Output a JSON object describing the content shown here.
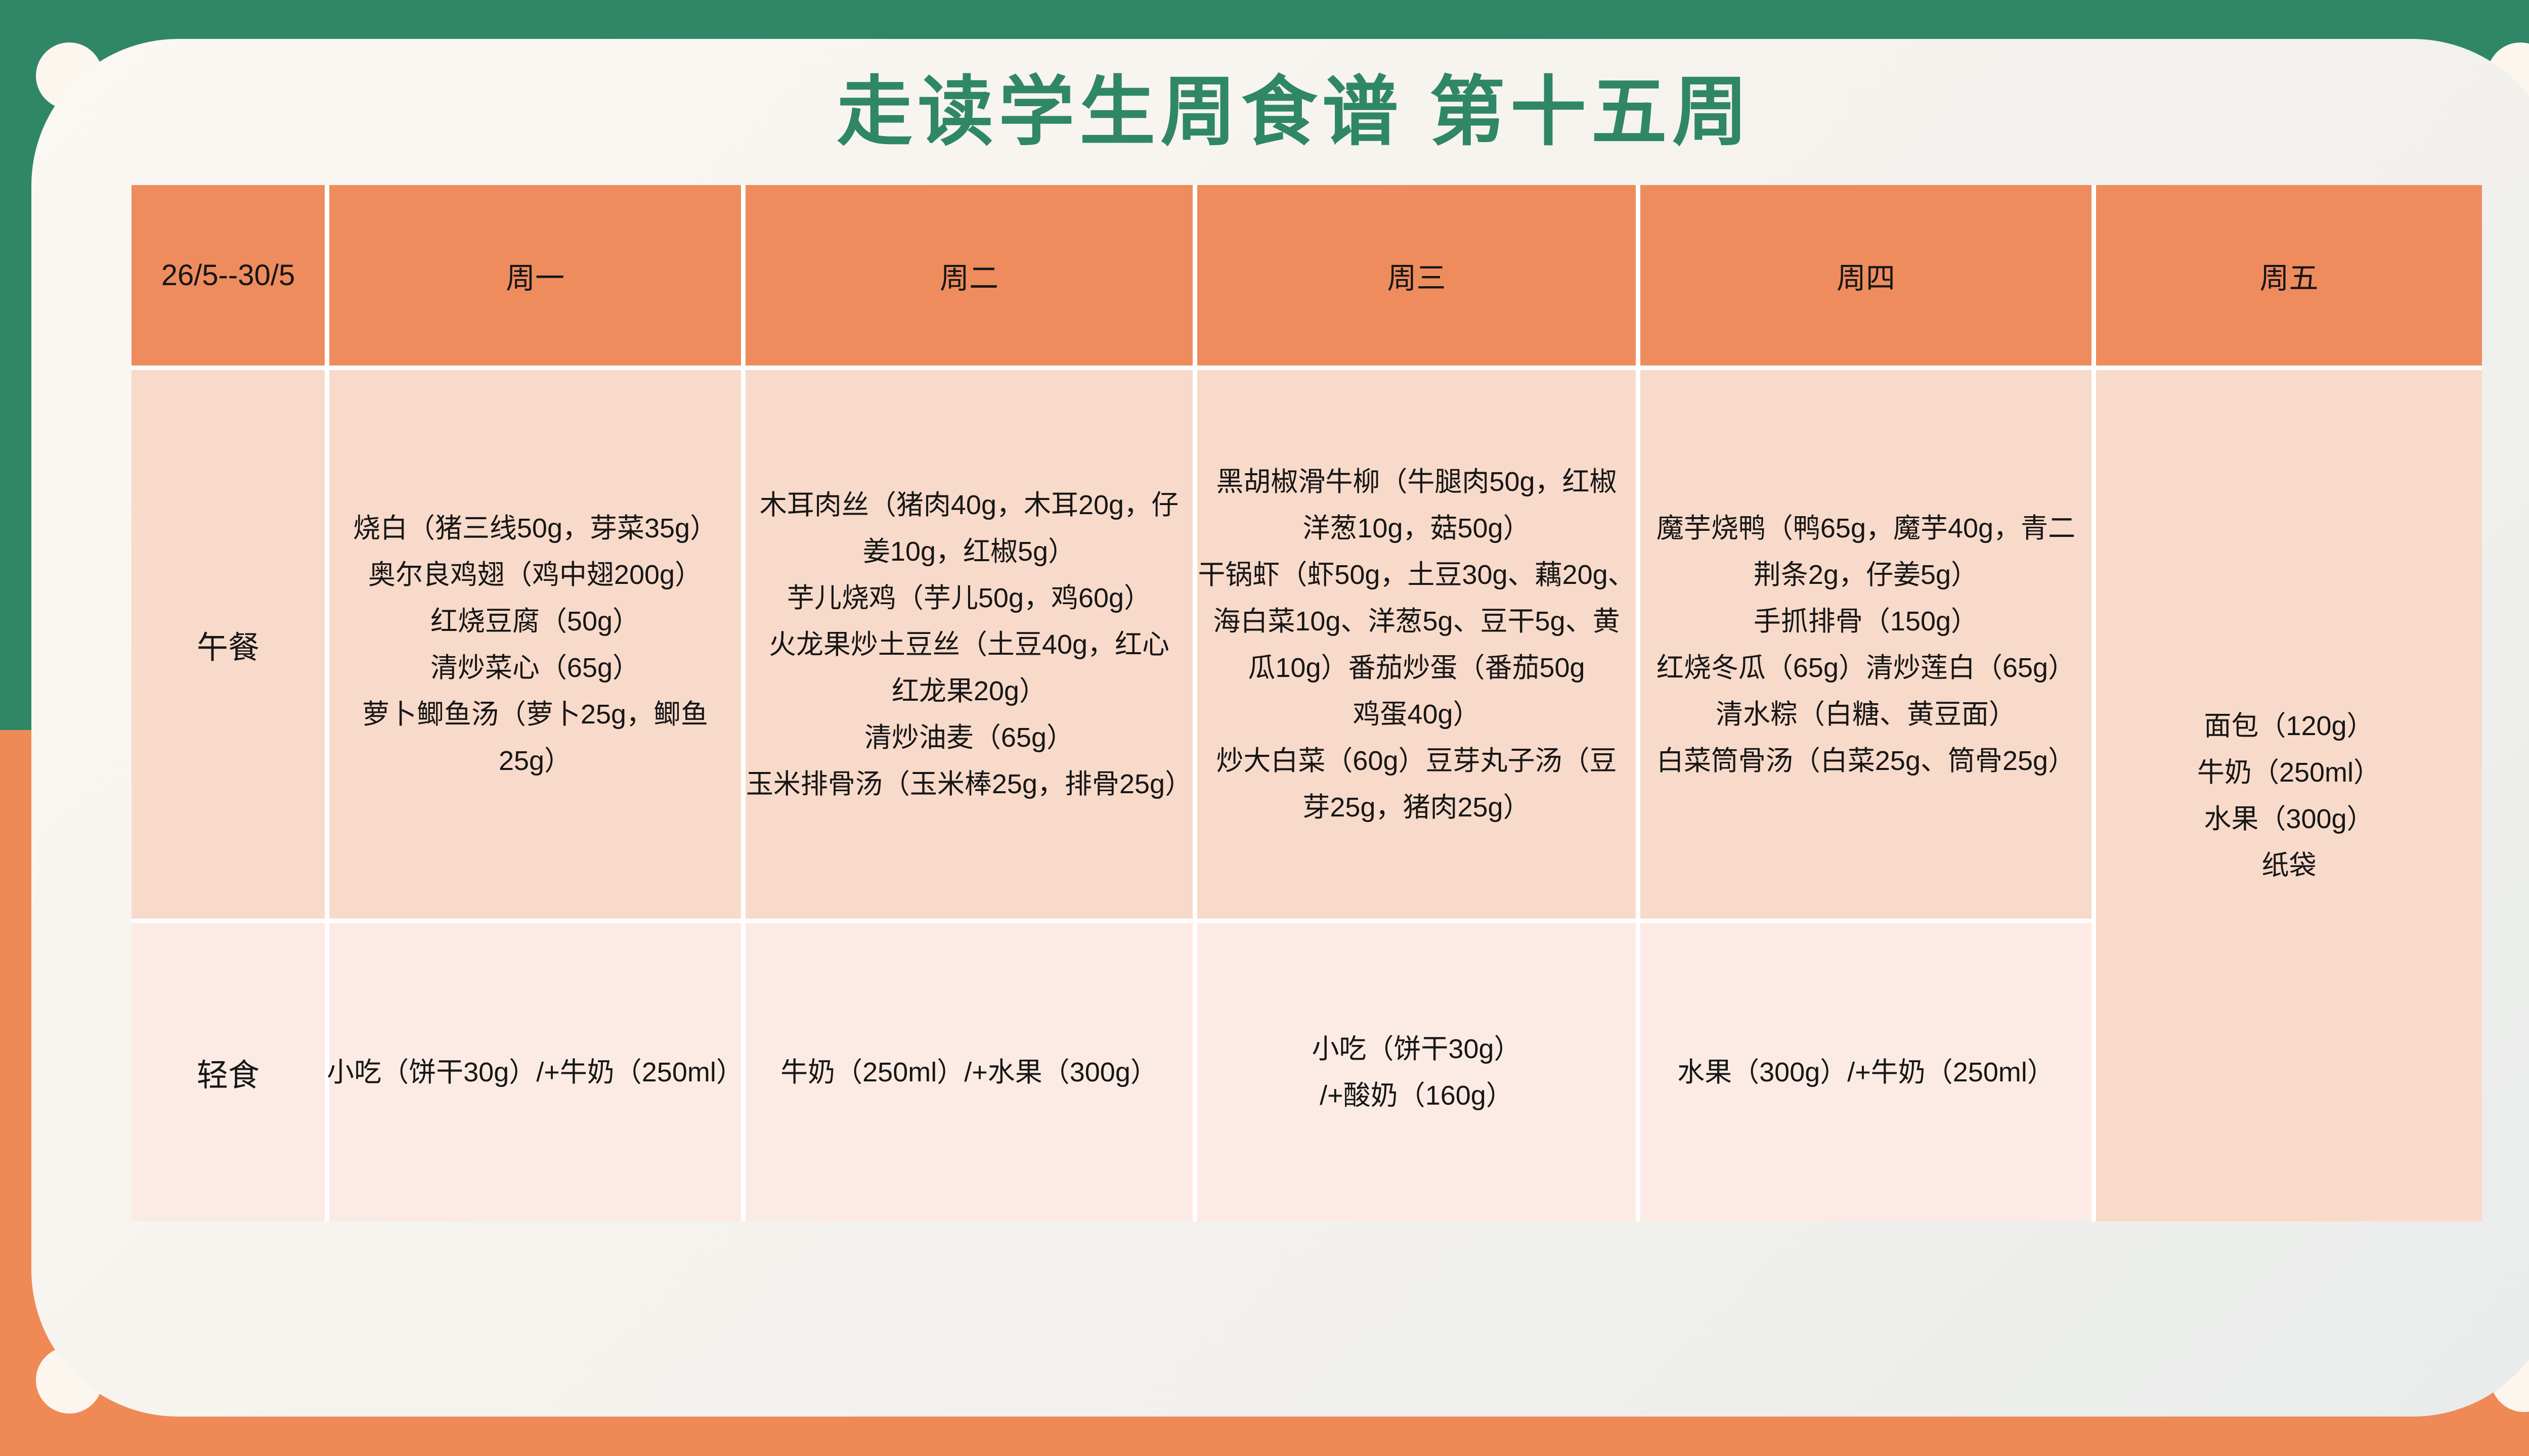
{
  "title": "走读学生周食谱 第十五周",
  "table": {
    "header": {
      "date_range": "26/5--30/5",
      "days": [
        "周一",
        "周二",
        "周三",
        "周四",
        "周五"
      ]
    },
    "lunch": {
      "label": "午餐",
      "monday": [
        "烧白（猪三线50g，芽菜35g）",
        "奥尔良鸡翅（鸡中翅200g）",
        "红烧豆腐（50g）",
        "清炒菜心（65g）",
        "萝卜鲫鱼汤（萝卜25g，鲫鱼",
        "25g）"
      ],
      "tuesday": [
        "木耳肉丝（猪肉40g，木耳20g，仔",
        "姜10g，红椒5g）",
        "芋儿烧鸡（芋儿50g，鸡60g）",
        "火龙果炒土豆丝（土豆40g，红心",
        "红龙果20g）",
        "清炒油麦（65g）",
        "玉米排骨汤（玉米棒25g，排骨25g）"
      ],
      "wednesday": [
        "黑胡椒滑牛柳（牛腿肉50g，红椒",
        "洋葱10g，菇50g）",
        "干锅虾（虾50g，土豆30g、藕20g、",
        "海白菜10g、洋葱5g、豆干5g、黄",
        "瓜10g）番茄炒蛋（番茄50g",
        "鸡蛋40g）",
        "炒大白菜（60g）豆芽丸子汤（豆",
        "芽25g，猪肉25g）"
      ],
      "thursday": [
        "魔芋烧鸭（鸭65g，魔芋40g，青二",
        "荆条2g，仔姜5g）",
        "手抓排骨（150g）",
        "红烧冬瓜（65g）清炒莲白（65g）",
        "清水粽（白糖、黄豆面）",
        "白菜筒骨汤（白菜25g、筒骨25g）"
      ]
    },
    "snack": {
      "label": "轻食",
      "monday": [
        "小吃（饼干30g）/+牛奶（250ml）"
      ],
      "tuesday": [
        "牛奶（250ml）/+水果（300g）"
      ],
      "wednesday": [
        "小吃（饼干30g）",
        "/+酸奶（160g）"
      ],
      "thursday": [
        "水果（300g）/+牛奶（250ml）"
      ]
    },
    "friday_all_day": [
      "面包（120g）",
      "牛奶（250ml）",
      "水果（300g）",
      "纸袋"
    ]
  },
  "colors": {
    "bg_green": "#2F8767",
    "bg_orange": "#EF8A57",
    "header_cell": "#EE8C5E",
    "lunch_cell": "#F8DACA",
    "snack_cell": "#FCEBE4",
    "grid_line": "#FFFFFF",
    "card_light": "#FBF7F2",
    "card_shade": "#E9ECEB",
    "dot_cream": "#FCF6EE",
    "title_green": "#2F8767",
    "text_dark": "#161616"
  }
}
